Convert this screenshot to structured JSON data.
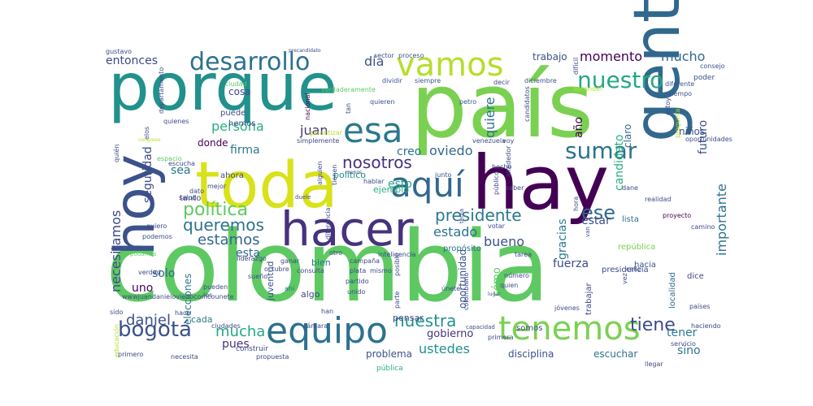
{
  "words": [
    {
      "text": "colombia",
      "color": "#5ec962"
    },
    {
      "text": "país",
      "color": "#7ad151"
    },
    {
      "text": "porque",
      "color": "#21918c"
    },
    {
      "text": "gente",
      "color": "#31688e"
    },
    {
      "text": "hay",
      "color": "#440154"
    },
    {
      "text": "toda",
      "color": "#d8e219"
    },
    {
      "text": "hoy",
      "color": "#3b528b"
    },
    {
      "text": "hacer",
      "color": "#46327e"
    },
    {
      "text": "equipo",
      "color": "#2c728e"
    },
    {
      "text": "tenemos",
      "color": "#7ad151"
    },
    {
      "text": "aquí",
      "color": "#31688e"
    },
    {
      "text": "esa",
      "color": "#2a788e"
    },
    {
      "text": "vamos",
      "color": "#b5de2b"
    },
    {
      "text": "desarrollo",
      "color": "#2c728e"
    },
    {
      "text": "nuestro",
      "color": "#23a884"
    },
    {
      "text": "sumar",
      "color": "#2c728e"
    },
    {
      "text": "bogotá",
      "color": "#3b528b"
    },
    {
      "text": "política",
      "color": "#5ec962"
    },
    {
      "text": "nosotros",
      "color": "#46327e"
    },
    {
      "text": "presidente",
      "color": "#2a788e"
    },
    {
      "text": "ese",
      "color": "#31688e"
    },
    {
      "text": "nuestra",
      "color": "#21918c"
    },
    {
      "text": "queremos",
      "color": "#2c728e"
    },
    {
      "text": "tiene",
      "color": "#3e4a89"
    },
    {
      "text": "estamos",
      "color": "#31688e"
    },
    {
      "text": "mucha",
      "color": "#22a884"
    },
    {
      "text": "daniel",
      "color": "#3b528b"
    },
    {
      "text": "momento",
      "color": "#440154"
    },
    {
      "text": "mucho",
      "color": "#31688e"
    },
    {
      "text": "ustedes",
      "color": "#21918c"
    },
    {
      "text": "necesitamos",
      "color": "#3e4a89"
    },
    {
      "text": "importante",
      "color": "#2c728e"
    },
    {
      "text": "persona",
      "color": "#29af7f"
    },
    {
      "text": "oviedo",
      "color": "#31688e"
    },
    {
      "text": "estado",
      "color": "#2c728e"
    },
    {
      "text": "bueno",
      "color": "#3b528b"
    },
    {
      "text": "entonces",
      "color": "#3e4a89"
    },
    {
      "text": "día",
      "color": "#3b528b"
    },
    {
      "text": "juan",
      "color": "#472d7b"
    },
    {
      "text": "quiere",
      "color": "#2c728e"
    },
    {
      "text": "seguridad",
      "color": "#3e4a89"
    },
    {
      "text": "futuro",
      "color": "#3b528b"
    },
    {
      "text": "firma",
      "color": "#2a788e"
    },
    {
      "text": "creo",
      "color": "#2c728e"
    },
    {
      "text": "esto",
      "color": "#22a884"
    },
    {
      "text": "uno",
      "color": "#440154"
    },
    {
      "text": "solo",
      "color": "#31688e"
    },
    {
      "text": "pues",
      "color": "#46327e"
    },
    {
      "text": "estar",
      "color": "#3e4a89"
    },
    {
      "text": "fuerza",
      "color": "#3e4a89"
    },
    {
      "text": "gracias",
      "color": "#2a788e"
    },
    {
      "text": "sino",
      "color": "#2c728e"
    },
    {
      "text": "tener",
      "color": "#2a788e"
    },
    {
      "text": "esta",
      "color": "#31688e"
    },
    {
      "text": "año",
      "color": "#440154"
    },
    {
      "text": "candidato",
      "color": "#29af7f"
    },
    {
      "text": "sea",
      "color": "#2a788e"
    },
    {
      "text": "gobierno",
      "color": "#46327e"
    },
    {
      "text": "cómo",
      "color": "#5ec962"
    },
    {
      "text": "trabajo",
      "color": "#3b528b"
    },
    {
      "text": "oportunidad",
      "color": "#3b528b"
    },
    {
      "text": "problema",
      "color": "#3b528b"
    },
    {
      "text": "disciplina",
      "color": "#3b528b"
    },
    {
      "text": "escuchar",
      "color": "#2c728e"
    },
    {
      "text": "elecciones",
      "color": "#2a788e"
    },
    {
      "text": "cosa",
      "color": "#3e4a89"
    },
    {
      "text": "donde",
      "color": "#440154"
    },
    {
      "text": "claro",
      "color": "#31688e"
    },
    {
      "text": "niños",
      "color": "#3b528b"
    },
    {
      "text": "localidad",
      "color": "#31688e"
    },
    {
      "text": "político",
      "color": "#21918c"
    },
    {
      "text": "ejemplo",
      "color": "#29af7f"
    },
    {
      "text": "bien",
      "color": "#2a788e"
    },
    {
      "text": "algo",
      "color": "#3e4a89"
    },
    {
      "text": "juventud",
      "color": "#3b528b"
    },
    {
      "text": "pensar",
      "color": "#3e4a89"
    },
    {
      "text": "cada",
      "color": "#2a788e"
    },
    {
      "text": "hacia",
      "color": "#3b528b"
    },
    {
      "text": "lista",
      "color": "#2c728e"
    },
    {
      "text": "presidencia",
      "color": "#3e4a89"
    },
    {
      "text": "propósito",
      "color": "#2c728e"
    },
    {
      "text": "ahora",
      "color": "#3e4a89"
    },
    {
      "text": "puede",
      "color": "#3e4a89"
    },
    {
      "text": "hemos",
      "color": "#3e4a89"
    },
    {
      "text": "tanto",
      "color": "#3e4a89"
    },
    {
      "text": "dice",
      "color": "#3e4a89"
    },
    {
      "text": "república",
      "color": "#7ad151"
    },
    {
      "text": "somos",
      "color": "#3e4a89"
    },
    {
      "text": "trabajar",
      "color": "#3e4a89"
    },
    {
      "text": "construir",
      "color": "#3e4a89"
    },
    {
      "text": "pública",
      "color": "#29af7f"
    },
    {
      "text": "sector",
      "color": "#3b528b"
    },
    {
      "text": "proceso",
      "color": "#3b528b"
    },
    {
      "text": "dividir",
      "color": "#3b528b"
    },
    {
      "text": "siempre",
      "color": "#3b528b"
    },
    {
      "text": "diciembre",
      "color": "#3b528b"
    },
    {
      "text": "poder",
      "color": "#3b528b"
    },
    {
      "text": "consejo",
      "color": "#3b528b"
    },
    {
      "text": "tiempo",
      "color": "#3b528b"
    },
    {
      "text": "diferente",
      "color": "#3b528b"
    },
    {
      "text": "quieren",
      "color": "#3b528b"
    },
    {
      "text": "petro",
      "color": "#3b528b"
    },
    {
      "text": "junto",
      "color": "#3b528b"
    },
    {
      "text": "saber",
      "color": "#3e4a89"
    },
    {
      "text": "voy",
      "color": "#3e4a89"
    },
    {
      "text": "venezuela",
      "color": "#3e4a89"
    },
    {
      "text": "hecho",
      "color": "#3e4a89"
    },
    {
      "text": "alrededor",
      "color": "#3e4a89"
    },
    {
      "text": "dane",
      "color": "#3e4a89"
    },
    {
      "text": "realidad",
      "color": "#3e4a89"
    },
    {
      "text": "proyecto",
      "color": "#440154"
    },
    {
      "text": "camino",
      "color": "#3e4a89"
    },
    {
      "text": "calle",
      "color": "#3e4a89"
    },
    {
      "text": "mejor",
      "color": "#3e4a89"
    },
    {
      "text": "dato",
      "color": "#3e4a89"
    },
    {
      "text": "quiero",
      "color": "#3e4a89"
    },
    {
      "text": "liderazgo",
      "color": "#3e4a89"
    },
    {
      "text": "octubre",
      "color": "#3e4a89"
    },
    {
      "text": "plata",
      "color": "#3e4a89"
    },
    {
      "text": "partido",
      "color": "#3e4a89"
    },
    {
      "text": "unido",
      "color": "#3e4a89"
    },
    {
      "text": "han",
      "color": "#3e4a89"
    },
    {
      "text": "ciudades",
      "color": "#3e4a89"
    },
    {
      "text": "necesita",
      "color": "#3e4a89"
    },
    {
      "text": "propuesta",
      "color": "#3e4a89"
    },
    {
      "text": "primero",
      "color": "#3e4a89"
    },
    {
      "text": "primera",
      "color": "#3e4a89"
    },
    {
      "text": "llegar",
      "color": "#3e4a89"
    },
    {
      "text": "servicio",
      "color": "#3e4a89"
    },
    {
      "text": "haciendo",
      "color": "#3e4a89"
    },
    {
      "text": "países",
      "color": "#3e4a89"
    },
    {
      "text": "sueño",
      "color": "#3e4a89"
    },
    {
      "text": "pueden",
      "color": "#3e4a89"
    },
    {
      "text": "les",
      "color": "#3e4a89"
    },
    {
      "text": "ahí",
      "color": "#2c728e"
    },
    {
      "text": "número",
      "color": "#3e4a89"
    },
    {
      "text": "quien",
      "color": "#3e4a89"
    },
    {
      "text": "tarea",
      "color": "#3e4a89"
    },
    {
      "text": "votar",
      "color": "#3e4a89"
    },
    {
      "text": "otro",
      "color": "#3e4a89"
    },
    {
      "text": "ganar",
      "color": "#3e4a89"
    },
    {
      "text": "hace",
      "color": "#3e4a89"
    },
    {
      "text": "sido",
      "color": "#3e4a89"
    },
    {
      "text": "salud",
      "color": "#3e4a89"
    },
    {
      "text": "verdad",
      "color": "#3e4a89"
    },
    {
      "text": "podamos",
      "color": "#5ec962"
    },
    {
      "text": "podemos",
      "color": "#3e4a89"
    },
    {
      "text": "escucha",
      "color": "#3e4a89"
    },
    {
      "text": "espacio",
      "color": "#5ec962"
    },
    {
      "text": "quienes",
      "color": "#3e4a89"
    },
    {
      "text": "elos",
      "color": "#3e4a89"
    },
    {
      "text": "ciudad",
      "color": "#5ec962"
    },
    {
      "text": "departamento",
      "color": "#3e4a89"
    },
    {
      "text": "gustavo",
      "color": "#3e4a89"
    },
    {
      "text": "precandidato",
      "color": "#3e4a89"
    },
    {
      "text": "verdaderamente",
      "color": "#5ec962"
    },
    {
      "text": "nacional",
      "color": "#440154"
    },
    {
      "text": "tan",
      "color": "#3e4a89"
    },
    {
      "text": "simplemente",
      "color": "#3e4a89"
    },
    {
      "text": "garantizar",
      "color": "#b5de2b"
    },
    {
      "text": "alguien",
      "color": "#3e4a89"
    },
    {
      "text": "tienen",
      "color": "#3e4a89"
    },
    {
      "text": "hablar",
      "color": "#3e4a89"
    },
    {
      "text": "público",
      "color": "#3e4a89"
    },
    {
      "text": "diferencia",
      "color": "#3e4a89"
    },
    {
      "text": "inteligencia",
      "color": "#3e4a89"
    },
    {
      "text": "campaña",
      "color": "#3e4a89"
    },
    {
      "text": "mismo",
      "color": "#3e4a89"
    },
    {
      "text": "consulta",
      "color": "#3e4a89"
    },
    {
      "text": "posible",
      "color": "#3e4a89"
    },
    {
      "text": "parte",
      "color": "#3e4a89"
    },
    {
      "text": "únete",
      "color": "#3e4a89"
    },
    {
      "text": "cámara",
      "color": "#3e4a89"
    },
    {
      "text": "colombiano",
      "color": "#3e4a89"
    },
    {
      "text": "jóvenes",
      "color": "#3e4a89"
    },
    {
      "text": "capacidad",
      "color": "#3e4a89"
    },
    {
      "text": "wwwjuandanieloviedocomcounete",
      "color": "#3e4a89"
    },
    {
      "text": "educación",
      "color": "#b5de2b"
    },
    {
      "text": "quién",
      "color": "#3e4a89"
    },
    {
      "text": "congreso",
      "color": "#b5de2b"
    },
    {
      "text": "pregunta",
      "color": "#b5de2b"
    },
    {
      "text": "oportunidades",
      "color": "#3e4a89"
    },
    {
      "text": "estoy",
      "color": "#3e4a89"
    },
    {
      "text": "candidatos",
      "color": "#3e4a89"
    },
    {
      "text": "aprender",
      "color": "#b5de2b"
    },
    {
      "text": "difícil",
      "color": "#3e4a89"
    },
    {
      "text": "decir",
      "color": "#3e4a89"
    },
    {
      "text": "van",
      "color": "#3e4a89"
    },
    {
      "text": "duele",
      "color": "#3e4a89"
    },
    {
      "text": "tema",
      "color": "#3e4a89"
    },
    {
      "text": "hora",
      "color": "#3e4a89"
    },
    {
      "text": "vez",
      "color": "#3e4a89"
    },
    {
      "text": "lugar",
      "color": "#3e4a89"
    },
    {
      "text": "menos",
      "color": "#3e4a89"
    },
    {
      "text": "acá",
      "color": "#3e4a89"
    }
  ]
}
